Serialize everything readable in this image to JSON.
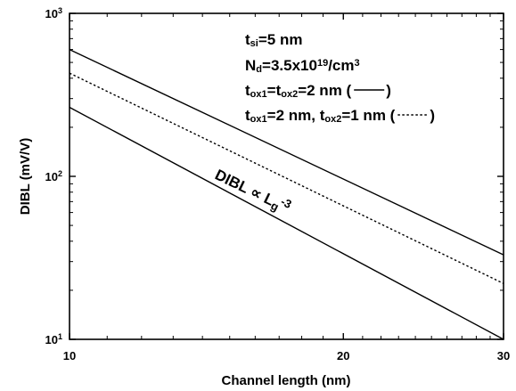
{
  "chart_data": {
    "type": "line",
    "title": "",
    "xlabel": "Channel length (nm)",
    "ylabel": "DIBL (mV/V)",
    "xscale": "log",
    "yscale": "log",
    "xlim": [
      10,
      30
    ],
    "ylim": [
      10,
      1000
    ],
    "x_ticks": [
      {
        "value": 10,
        "label": "10"
      },
      {
        "value": 20,
        "label": "20"
      },
      {
        "value": 30,
        "label": "30"
      }
    ],
    "y_ticks": [
      {
        "value": 10,
        "base": "10",
        "exp": "1"
      },
      {
        "value": 100,
        "base": "10",
        "exp": "2"
      },
      {
        "value": 1000,
        "base": "10",
        "exp": "3"
      }
    ],
    "grid": false,
    "series": [
      {
        "style": "solid",
        "x": [
          10,
          30
        ],
        "y": [
          600,
          33
        ]
      },
      {
        "style": "dotted",
        "x": [
          10,
          30
        ],
        "y": [
          430,
          22
        ]
      },
      {
        "style": "solid",
        "x": [
          10,
          30
        ],
        "y": [
          265,
          10
        ]
      }
    ],
    "legend": {
      "placement": "top-right",
      "lines": [
        {
          "parts": [
            {
              "t": "t"
            },
            {
              "t": "si",
              "sub": true
            },
            {
              "t": "=5 nm"
            }
          ]
        },
        {
          "parts": [
            {
              "t": "N"
            },
            {
              "t": "d",
              "sub": true
            },
            {
              "t": "=3.5x10"
            },
            {
              "t": "19",
              "sup": true
            },
            {
              "t": "/cm"
            },
            {
              "t": "3",
              "sup": true
            }
          ]
        },
        {
          "parts": [
            {
              "t": "t"
            },
            {
              "t": "ox1",
              "sub": true
            },
            {
              "t": "=t"
            },
            {
              "t": "ox2",
              "sub": true
            },
            {
              "t": "=2 nm ("
            }
          ],
          "sample": "solid",
          "close": ")"
        },
        {
          "parts": [
            {
              "t": "t"
            },
            {
              "t": "ox1",
              "sub": true
            },
            {
              "t": "=2 nm, t"
            },
            {
              "t": "ox2",
              "sub": true
            },
            {
              "t": "=1 nm ("
            }
          ],
          "sample": "dotted",
          "close": ")"
        }
      ]
    },
    "annotations": [
      {
        "parts": [
          {
            "t": "DIBL ∝ L"
          },
          {
            "t": "g",
            "sub": true
          },
          {
            "t": "-3",
            "sup": true
          }
        ]
      }
    ]
  }
}
